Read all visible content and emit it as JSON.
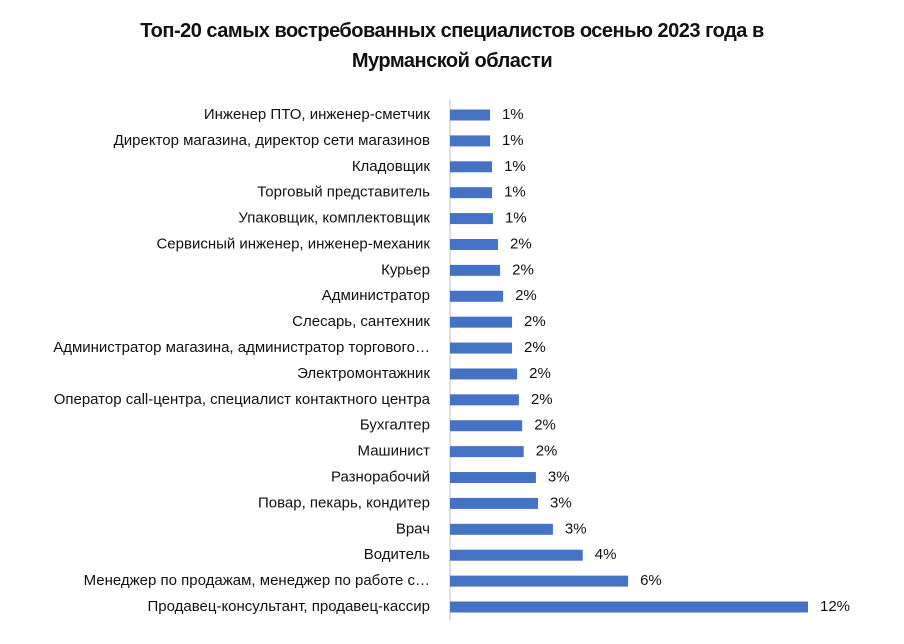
{
  "chart_data": {
    "type": "bar",
    "orientation": "horizontal",
    "title": "Топ-20 самых востребованных специалистов осенью 2023 года в Мурманской области",
    "color": "#4472c4",
    "categories": [
      "Инженер ПТО, инженер-сметчик",
      "Директор магазина, директор сети магазинов",
      "Кладовщик",
      "Торговый представитель",
      "Упаковщик, комплектовщик",
      "Сервисный инженер, инженер-механик",
      "Курьер",
      "Администратор",
      "Слесарь, сантехник",
      "Администратор магазина, администратор торгового…",
      "Электромонтажник",
      "Оператор call-центра, специалист контактного центра",
      "Бухгалтер",
      "Машинист",
      "Разнорабочий",
      "Повар, пекарь, кондитер",
      "Врач",
      "Водитель",
      "Менеджер по продажам, менеджер по работе с…",
      "Продавец-консультант, продавец-кассир"
    ],
    "values": [
      1.34,
      1.34,
      1.41,
      1.41,
      1.44,
      1.61,
      1.68,
      1.78,
      2.08,
      2.08,
      2.25,
      2.31,
      2.42,
      2.47,
      2.88,
      2.95,
      3.45,
      4.45,
      5.97,
      12
    ],
    "value_labels": [
      "1%",
      "1%",
      "1%",
      "1%",
      "1%",
      "2%",
      "2%",
      "2%",
      "2%",
      "2%",
      "2%",
      "2%",
      "2%",
      "2%",
      "3%",
      "3%",
      "3%",
      "4%",
      "6%",
      "12%"
    ]
  }
}
